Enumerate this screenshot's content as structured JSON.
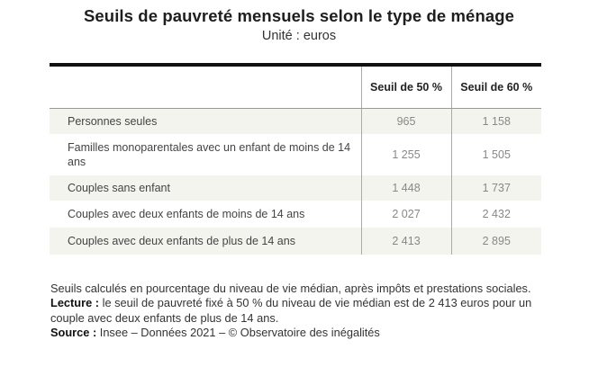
{
  "title": "Seuils de pauvreté mensuels selon le type de ménage",
  "subtitle": "Unité : euros",
  "table": {
    "headers": [
      "",
      "Seuil de 50 %",
      "Seuil de 60 %"
    ],
    "rows": [
      {
        "label": "Personnes seules",
        "v50": "965",
        "v60": "1 158"
      },
      {
        "label": "Familles monoparentales avec un enfant de moins de 14 ans",
        "v50": "1 255",
        "v60": "1 505"
      },
      {
        "label": "Couples sans enfant",
        "v50": "1 448",
        "v60": "1 737"
      },
      {
        "label": "Couples avec deux enfants de moins de 14 ans",
        "v50": "2 027",
        "v60": "2 432"
      },
      {
        "label": "Couples avec deux enfants de plus de 14 ans",
        "v50": "2 413",
        "v60": "2 895"
      }
    ]
  },
  "notes": {
    "method": "Seuils calculés en pourcentage du niveau de vie médian, après impôts et prestations sociales.",
    "reading_label": "Lecture :",
    "reading_text": " le seuil de pauvreté fixé à 50 % du niveau de vie médian est de 2 413 euros pour un couple avec deux enfants de plus de 14 ans.",
    "source_label": "Source :",
    "source_text": " Insee – Données 2021 – © Observatoire des inégalités"
  },
  "colors": {
    "row_shade": "#f4f4ee",
    "rule": "#111111",
    "value_text": "#888888"
  }
}
